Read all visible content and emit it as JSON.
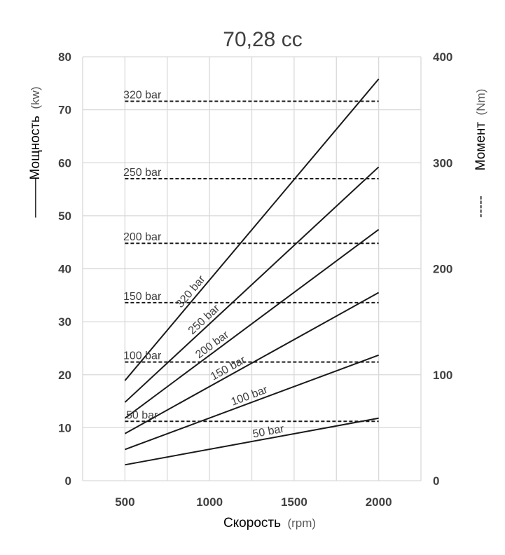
{
  "chart_data": {
    "type": "line",
    "title": "70,28 cc",
    "xlabel": {
      "main": "Скорость",
      "unit": "(rpm)"
    },
    "ylabel_left": {
      "main": "Мощность",
      "unit": "(kw)",
      "marker": "———"
    },
    "ylabel_right": {
      "main": "Момент",
      "unit": "(Nm)",
      "marker": "-----"
    },
    "x_ticks": [
      "500",
      "1000",
      "1500",
      "2000"
    ],
    "x_grid": [
      500,
      750,
      1000,
      1250,
      1500,
      1750,
      2000
    ],
    "xlim": [
      250,
      2250
    ],
    "y_left_ticks": [
      "0",
      "10",
      "20",
      "30",
      "40",
      "50",
      "60",
      "70",
      "80"
    ],
    "ylim_left": [
      0,
      80
    ],
    "y_right_ticks": [
      "0",
      "100",
      "200",
      "300",
      "400"
    ],
    "ylim_right": [
      0,
      400
    ],
    "grid": true,
    "power_series": [
      {
        "name": "50 bar",
        "x": [
          500,
          2000
        ],
        "y": [
          3.0,
          11.8
        ]
      },
      {
        "name": "100 bar",
        "x": [
          500,
          2000
        ],
        "y": [
          5.9,
          23.7
        ]
      },
      {
        "name": "150 bar",
        "x": [
          500,
          2000
        ],
        "y": [
          8.9,
          35.5
        ]
      },
      {
        "name": "200 bar",
        "x": [
          500,
          2000
        ],
        "y": [
          11.8,
          47.4
        ]
      },
      {
        "name": "250 bar",
        "x": [
          500,
          2000
        ],
        "y": [
          14.8,
          59.2
        ]
      },
      {
        "name": "320 bar",
        "x": [
          500,
          2000
        ],
        "y": [
          18.9,
          75.8
        ]
      }
    ],
    "torque_series": [
      {
        "name": "50 bar",
        "x": [
          500,
          2000
        ],
        "y": [
          56
        ]
      },
      {
        "name": "100 bar",
        "x": [
          500,
          2000
        ],
        "y": [
          112
        ]
      },
      {
        "name": "150 bar",
        "x": [
          500,
          2000
        ],
        "y": [
          168
        ]
      },
      {
        "name": "200 bar",
        "x": [
          500,
          2000
        ],
        "y": [
          224
        ]
      },
      {
        "name": "250 bar",
        "x": [
          500,
          2000
        ],
        "y": [
          285
        ]
      },
      {
        "name": "320 bar",
        "x": [
          500,
          2000
        ],
        "y": [
          358
        ]
      }
    ]
  }
}
